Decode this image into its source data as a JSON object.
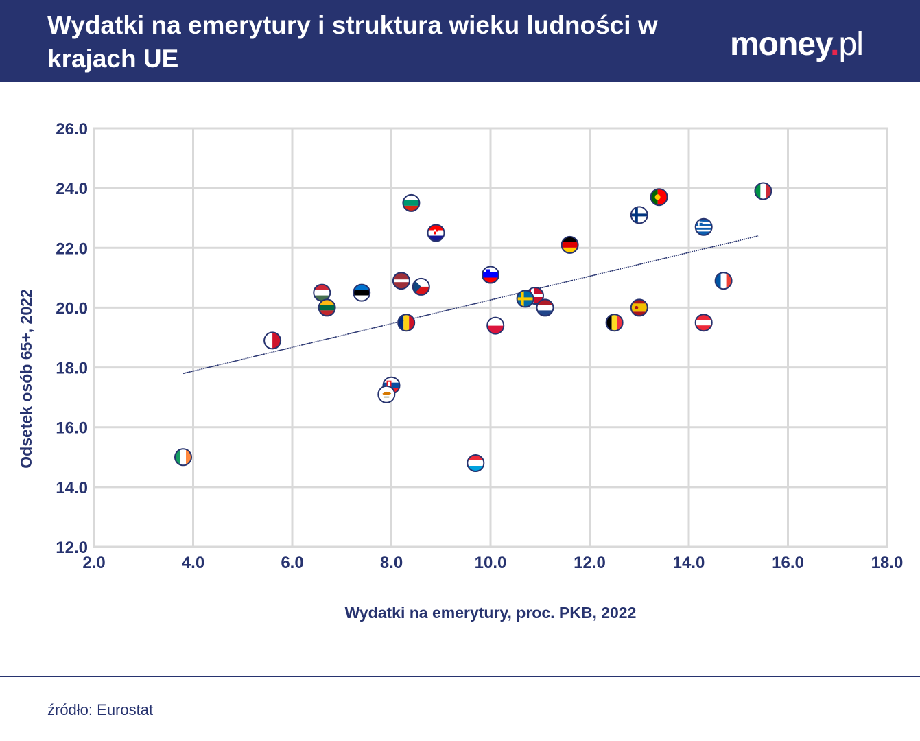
{
  "header": {
    "title": "Wydatki na emerytury i struktura wieku ludności w krajach UE",
    "logo_main": "money",
    "logo_dot": ".",
    "logo_tld": "pl"
  },
  "footer": {
    "source": "źródło: Eurostat"
  },
  "colors": {
    "header_bg": "#27336f",
    "text": "#27336f",
    "grid": "#d9d9d9",
    "trendline": "#27336f",
    "logo_dot": "#e8264d"
  },
  "chart_data": {
    "type": "scatter",
    "title": "Wydatki na emerytury i struktura wieku ludności w krajach UE",
    "xlabel": "Wydatki na emerytury, proc. PKB, 2022",
    "ylabel": "Odsetek osób 65+, 2022",
    "xlim": [
      2.0,
      18.0
    ],
    "ylim": [
      12.0,
      26.0
    ],
    "x_ticks": [
      "2.0",
      "4.0",
      "6.0",
      "8.0",
      "10.0",
      "12.0",
      "14.0",
      "16.0",
      "18.0"
    ],
    "y_ticks": [
      "12.0",
      "14.0",
      "16.0",
      "18.0",
      "20.0",
      "22.0",
      "24.0",
      "26.0"
    ],
    "grid": true,
    "trendline": {
      "x": [
        3.8,
        15.4
      ],
      "y": [
        17.8,
        22.4
      ]
    },
    "points": [
      {
        "flag": "italy",
        "x": 15.5,
        "y": 23.9
      },
      {
        "flag": "portugal",
        "x": 13.4,
        "y": 23.7
      },
      {
        "flag": "finland",
        "x": 13.0,
        "y": 23.1
      },
      {
        "flag": "greece",
        "x": 14.3,
        "y": 22.7
      },
      {
        "flag": "germany",
        "x": 11.6,
        "y": 22.1
      },
      {
        "flag": "france",
        "x": 14.7,
        "y": 20.9
      },
      {
        "flag": "spain",
        "x": 13.0,
        "y": 20.0
      },
      {
        "flag": "belgium",
        "x": 12.5,
        "y": 19.5
      },
      {
        "flag": "austria",
        "x": 14.3,
        "y": 19.5
      },
      {
        "flag": "denmark",
        "x": 10.9,
        "y": 20.4
      },
      {
        "flag": "sweden",
        "x": 10.7,
        "y": 20.3
      },
      {
        "flag": "netherlands",
        "x": 11.1,
        "y": 20.0
      },
      {
        "flag": "slovenia",
        "x": 10.0,
        "y": 21.1
      },
      {
        "flag": "poland",
        "x": 10.1,
        "y": 19.4
      },
      {
        "flag": "bulgaria",
        "x": 8.4,
        "y": 23.5
      },
      {
        "flag": "croatia",
        "x": 8.9,
        "y": 22.5
      },
      {
        "flag": "latvia",
        "x": 8.2,
        "y": 20.9
      },
      {
        "flag": "czechia",
        "x": 8.6,
        "y": 20.7
      },
      {
        "flag": "romania",
        "x": 8.3,
        "y": 19.5
      },
      {
        "flag": "slovakia",
        "x": 8.0,
        "y": 17.4
      },
      {
        "flag": "cyprus",
        "x": 7.9,
        "y": 17.1
      },
      {
        "flag": "estonia",
        "x": 7.4,
        "y": 20.5
      },
      {
        "flag": "hungary",
        "x": 6.6,
        "y": 20.5
      },
      {
        "flag": "lithuania",
        "x": 6.7,
        "y": 20.0
      },
      {
        "flag": "malta",
        "x": 5.6,
        "y": 18.9
      },
      {
        "flag": "ireland",
        "x": 3.8,
        "y": 15.0
      },
      {
        "flag": "luxembourg",
        "x": 9.7,
        "y": 14.8
      }
    ]
  }
}
